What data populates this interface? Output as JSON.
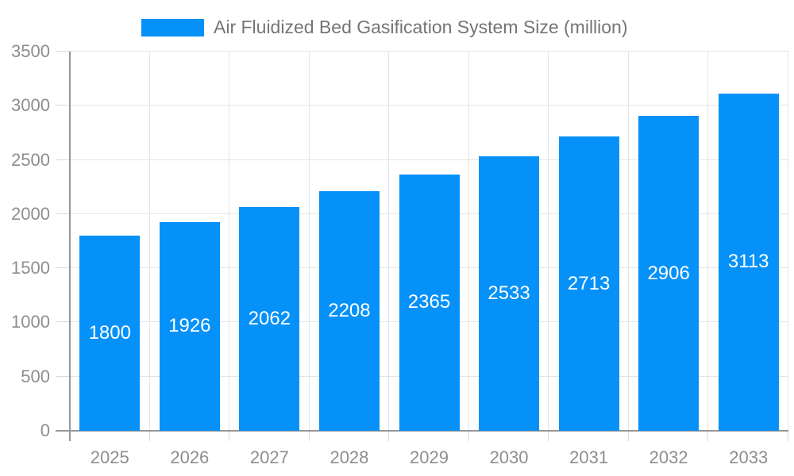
{
  "legend": {
    "label": "Air Fluidized Bed Gasification System Size (million)"
  },
  "chart_data": {
    "type": "bar",
    "title": "Air Fluidized Bed Gasification System Size (million)",
    "categories": [
      "2025",
      "2026",
      "2027",
      "2028",
      "2029",
      "2030",
      "2031",
      "2032",
      "2033"
    ],
    "values": [
      1800,
      1926,
      2062,
      2208,
      2365,
      2533,
      2713,
      2906,
      3113
    ],
    "xlabel": "",
    "ylabel": "",
    "ylim": [
      0,
      3500
    ],
    "yticks": [
      0,
      500,
      1000,
      1500,
      2000,
      2500,
      3000,
      3500
    ],
    "grid": true,
    "legend_position": "top",
    "bar_color": "#0591f8",
    "value_label_color": "#ffffff",
    "axis_label_color": "#8e8e8e",
    "grid_color": "#e4e4e4",
    "tick_color": "#d9d9d9",
    "axis_line_color": "#979797",
    "title_color": "#757575"
  }
}
